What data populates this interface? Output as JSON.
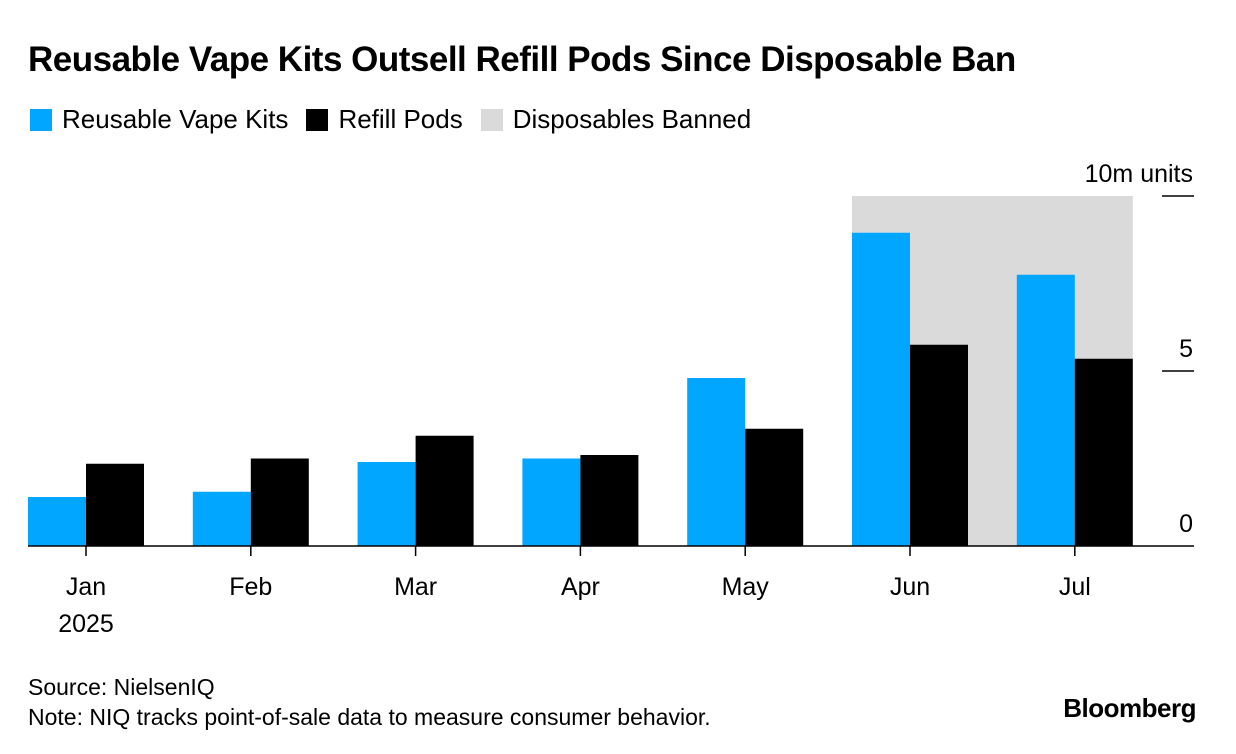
{
  "title": "Reusable Vape Kits Outsell Refill Pods Since Disposable Ban",
  "legend": [
    {
      "label": "Reusable Vape Kits",
      "color": "#00a6ff"
    },
    {
      "label": "Refill Pods",
      "color": "#000000"
    },
    {
      "label": "Disposables Banned",
      "color": "#dadada"
    }
  ],
  "chart_data": {
    "type": "bar",
    "categories": [
      "Jan",
      "Feb",
      "Mar",
      "Apr",
      "May",
      "Jun",
      "Jul"
    ],
    "category_sublabels": [
      "2025",
      "",
      "",
      "",
      "",
      "",
      ""
    ],
    "series": [
      {
        "name": "Reusable Vape Kits",
        "color": "#00a6ff",
        "values": [
          1.4,
          1.55,
          2.4,
          2.5,
          4.8,
          8.95,
          7.75
        ]
      },
      {
        "name": "Refill Pods",
        "color": "#000000",
        "values": [
          2.35,
          2.5,
          3.15,
          2.6,
          3.35,
          5.75,
          5.35
        ]
      }
    ],
    "shaded_region": {
      "label": "Disposables Banned",
      "from": "Jun",
      "to": "Jul",
      "color": "#dadada"
    },
    "y_unit_label": "10m units",
    "y_ticks": [
      0,
      5,
      10
    ],
    "ylim": [
      0,
      10
    ],
    "ylabel": "",
    "xlabel": "",
    "grid": false,
    "legend_position": "top-left"
  },
  "footer": {
    "source": "Source: NielsenIQ",
    "note": "Note: NIQ tracks point-of-sale data to measure consumer behavior."
  },
  "brand": "Bloomberg"
}
